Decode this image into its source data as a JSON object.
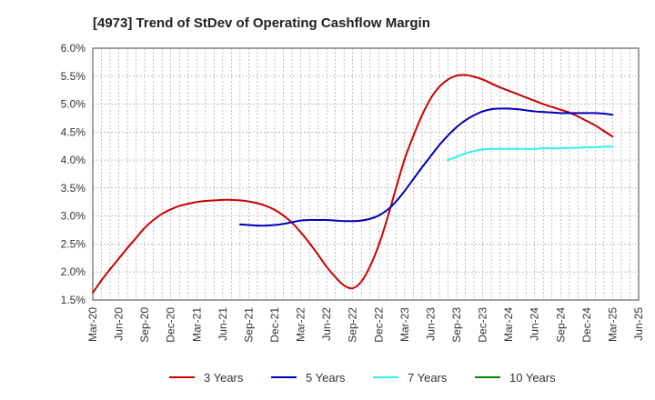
{
  "chart_data": {
    "type": "line",
    "title": "[4973]  Trend of StDev of Operating Cashflow Margin",
    "xlabel": "",
    "ylabel": "",
    "ylim": [
      1.5,
      6.0
    ],
    "y_ticks": [
      "1.5%",
      "2.0%",
      "2.5%",
      "3.0%",
      "3.5%",
      "4.0%",
      "4.5%",
      "5.0%",
      "5.5%",
      "6.0%"
    ],
    "x_ticks": [
      "Mar-20",
      "Jun-20",
      "Sep-20",
      "Dec-20",
      "Mar-21",
      "Jun-21",
      "Sep-21",
      "Dec-21",
      "Mar-22",
      "Jun-22",
      "Sep-22",
      "Dec-22",
      "Mar-23",
      "Jun-23",
      "Sep-23",
      "Dec-23",
      "Mar-24",
      "Jun-24",
      "Sep-24",
      "Dec-24",
      "Mar-25",
      "Jun-25"
    ],
    "grid": true,
    "legend_position": "bottom",
    "series": [
      {
        "name": "3 Years",
        "color": "#cc0000",
        "x": [
          "Mar-20",
          "Apr-20",
          "May-20",
          "Jun-20",
          "Jul-20",
          "Aug-20",
          "Sep-20",
          "Oct-20",
          "Nov-20",
          "Dec-20",
          "Jan-21",
          "Feb-21",
          "Mar-21",
          "Apr-21",
          "May-21",
          "Jun-21",
          "Jul-21",
          "Aug-21",
          "Sep-21",
          "Oct-21",
          "Nov-21",
          "Dec-21",
          "Jan-22",
          "Feb-22",
          "Mar-22",
          "Apr-22",
          "May-22",
          "Jun-22",
          "Jul-22",
          "Aug-22",
          "Sep-22",
          "Oct-22",
          "Nov-22",
          "Dec-22",
          "Jan-23",
          "Feb-23",
          "Mar-23",
          "Apr-23",
          "May-23",
          "Jun-23",
          "Jul-23",
          "Aug-23",
          "Sep-23",
          "Oct-23",
          "Nov-23",
          "Dec-23",
          "Jan-24",
          "Feb-24",
          "Mar-24",
          "Apr-24",
          "May-24",
          "Jun-24",
          "Jul-24",
          "Aug-24",
          "Sep-24",
          "Oct-24",
          "Nov-24",
          "Dec-24",
          "Jan-25",
          "Feb-25",
          "Mar-25"
        ],
        "values": [
          1.63,
          1.85,
          2.05,
          2.24,
          2.43,
          2.61,
          2.79,
          2.93,
          3.04,
          3.12,
          3.18,
          3.22,
          3.25,
          3.27,
          3.28,
          3.29,
          3.29,
          3.28,
          3.26,
          3.23,
          3.18,
          3.11,
          3.01,
          2.88,
          2.71,
          2.52,
          2.31,
          2.09,
          1.91,
          1.76,
          1.71,
          1.83,
          2.1,
          2.48,
          2.96,
          3.5,
          4.02,
          4.43,
          4.8,
          5.1,
          5.31,
          5.44,
          5.51,
          5.52,
          5.49,
          5.44,
          5.37,
          5.3,
          5.24,
          5.18,
          5.12,
          5.06,
          5.0,
          4.95,
          4.9,
          4.85,
          4.78,
          4.7,
          4.62,
          4.52,
          4.42
        ]
      },
      {
        "name": "5 Years",
        "color": "#0000bb",
        "x": [
          "Aug-21",
          "Sep-21",
          "Oct-21",
          "Nov-21",
          "Dec-21",
          "Jan-22",
          "Feb-22",
          "Mar-22",
          "Apr-22",
          "May-22",
          "Jun-22",
          "Jul-22",
          "Aug-22",
          "Sep-22",
          "Oct-22",
          "Nov-22",
          "Dec-22",
          "Jan-23",
          "Feb-23",
          "Mar-23",
          "Apr-23",
          "May-23",
          "Jun-23",
          "Jul-23",
          "Aug-23",
          "Sep-23",
          "Oct-23",
          "Nov-23",
          "Dec-23",
          "Jan-24",
          "Feb-24",
          "Mar-24",
          "Apr-24",
          "May-24",
          "Jun-24",
          "Jul-24",
          "Aug-24",
          "Sep-24",
          "Oct-24",
          "Nov-24",
          "Dec-24",
          "Jan-25",
          "Feb-25",
          "Mar-25"
        ],
        "values": [
          2.85,
          2.84,
          2.83,
          2.83,
          2.84,
          2.86,
          2.89,
          2.92,
          2.93,
          2.93,
          2.93,
          2.92,
          2.91,
          2.91,
          2.92,
          2.95,
          3.01,
          3.11,
          3.26,
          3.45,
          3.66,
          3.87,
          4.07,
          4.27,
          4.44,
          4.59,
          4.71,
          4.8,
          4.87,
          4.91,
          4.92,
          4.92,
          4.91,
          4.89,
          4.87,
          4.86,
          4.85,
          4.84,
          4.84,
          4.84,
          4.84,
          4.84,
          4.83,
          4.81
        ]
      },
      {
        "name": "7 Years",
        "color": "#33eeee",
        "x": [
          "Aug-23",
          "Sep-23",
          "Oct-23",
          "Nov-23",
          "Dec-23",
          "Jan-24",
          "Feb-24",
          "Mar-24",
          "Apr-24",
          "May-24",
          "Jun-24",
          "Jul-24",
          "Aug-24",
          "Sep-24",
          "Oct-24",
          "Nov-24",
          "Dec-24",
          "Jan-25",
          "Feb-25",
          "Mar-25"
        ],
        "values": [
          4.0,
          4.06,
          4.12,
          4.16,
          4.19,
          4.2,
          4.2,
          4.2,
          4.2,
          4.2,
          4.2,
          4.21,
          4.21,
          4.21,
          4.22,
          4.22,
          4.23,
          4.23,
          4.24,
          4.24
        ]
      },
      {
        "name": "10 Years",
        "color": "#008800",
        "x": [],
        "values": []
      }
    ]
  }
}
